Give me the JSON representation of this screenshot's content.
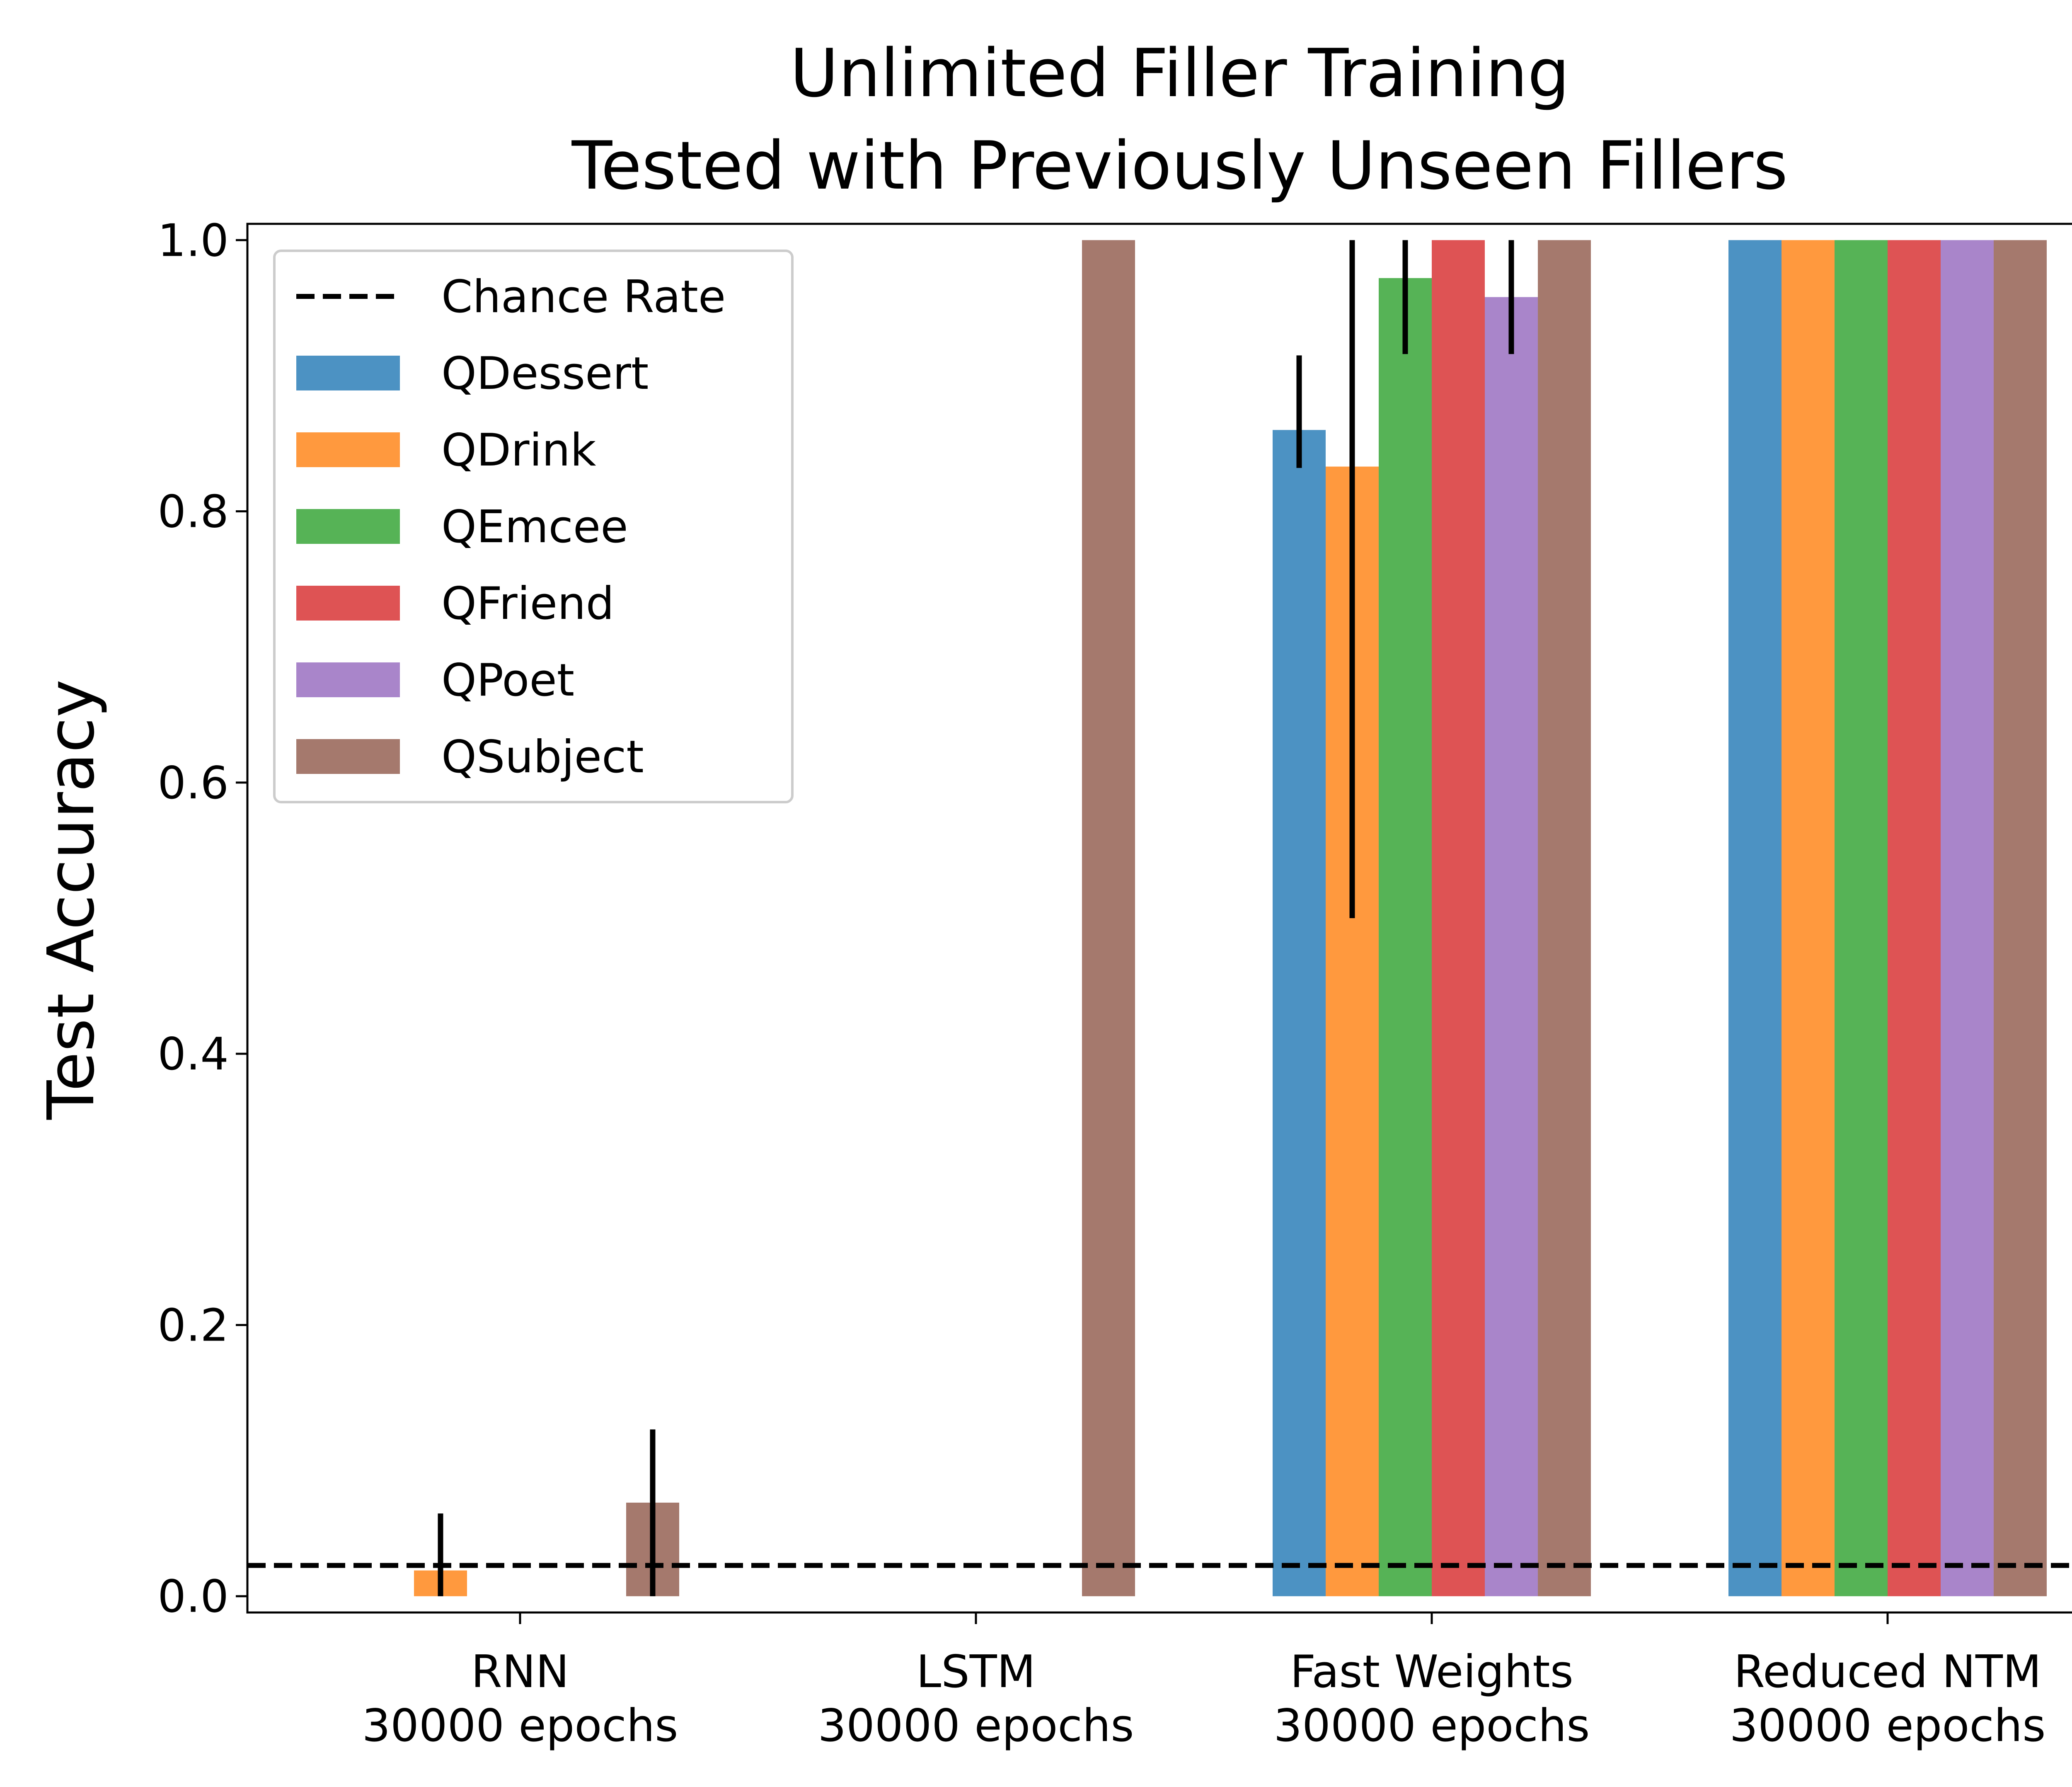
{
  "chart_data": {
    "type": "bar",
    "title": [
      "Unlimited Filler Training",
      "Tested with Previously Unseen Fillers"
    ],
    "xlabel": "",
    "ylabel": "Test Accuracy",
    "ylim": [
      -0.012,
      1.012
    ],
    "yticks": [
      "0.0",
      "0.2",
      "0.4",
      "0.6",
      "0.8",
      "1.0"
    ],
    "categories": [
      [
        "RNN",
        "30000 epochs"
      ],
      [
        "LSTM",
        "30000 epochs"
      ],
      [
        "Fast Weights",
        "30000 epochs"
      ],
      [
        "Reduced NTM",
        "30000 epochs"
      ]
    ],
    "series": [
      {
        "name": "QDessert",
        "color": "#4c92c3",
        "values": [
          0,
          0,
          0.86,
          1.0
        ],
        "err_low": [
          null,
          null,
          0.832,
          null
        ],
        "err_high": [
          null,
          null,
          0.915,
          null
        ]
      },
      {
        "name": "QDrink",
        "color": "#ff993e",
        "values": [
          0.019,
          0,
          0.833,
          1.0
        ],
        "err_low": [
          0,
          null,
          0.5,
          null
        ],
        "err_high": [
          0.061,
          null,
          1.0,
          null
        ]
      },
      {
        "name": "QEmcee",
        "color": "#56b356",
        "values": [
          0,
          0,
          0.972,
          1.0
        ],
        "err_low": [
          null,
          null,
          0.916,
          null
        ],
        "err_high": [
          null,
          null,
          1.0,
          null
        ]
      },
      {
        "name": "QFriend",
        "color": "#de5354",
        "values": [
          0,
          0,
          1.0,
          1.0
        ],
        "err_low": [
          null,
          null,
          null,
          null
        ],
        "err_high": [
          null,
          null,
          null,
          null
        ]
      },
      {
        "name": "QPoet",
        "color": "#a985ca",
        "values": [
          0,
          0,
          0.958,
          1.0
        ],
        "err_low": [
          null,
          null,
          0.916,
          null
        ],
        "err_high": [
          null,
          null,
          1.0,
          null
        ]
      },
      {
        "name": "QSubject",
        "color": "#a5796d",
        "values": [
          0.069,
          1.0,
          1.0,
          1.0
        ],
        "err_low": [
          0,
          null,
          null,
          null
        ],
        "err_high": [
          0.123,
          null,
          null,
          null
        ]
      }
    ],
    "reference_line": {
      "name": "Chance Rate",
      "value": 0.0227,
      "style": "dashed",
      "color": "#000000"
    },
    "legend": {
      "placement": "top-left",
      "entries": [
        "Chance Rate",
        "QDessert",
        "QDrink",
        "QEmcee",
        "QFriend",
        "QPoet",
        "QSubject"
      ]
    },
    "grid": false
  }
}
